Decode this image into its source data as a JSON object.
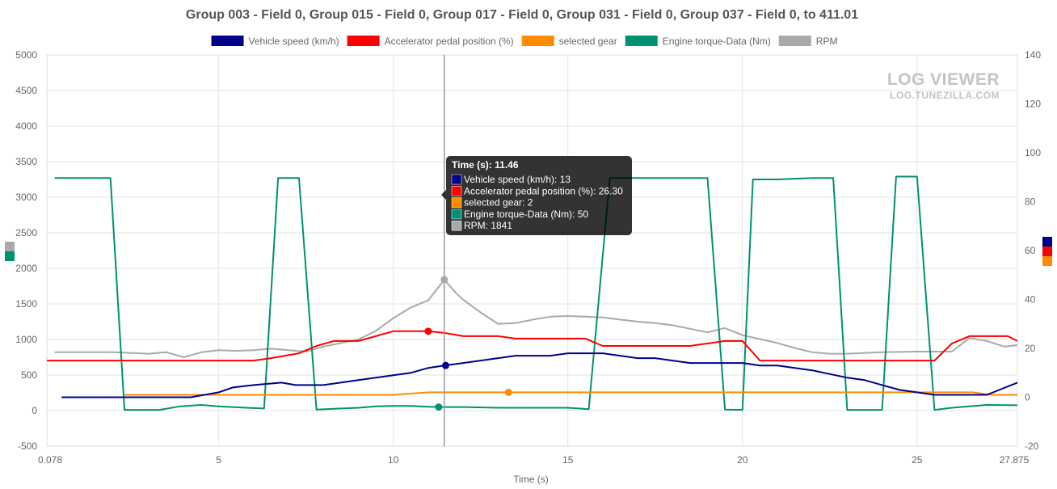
{
  "chart_data": {
    "type": "line",
    "title": "Group 003 - Field 0, Group 015 - Field 0, Group 017 - Field 0, Group 031 - Field 0, Group 037 - Field 0, to 411.01",
    "xlabel": "Time (s)",
    "xlim": [
      0.078,
      27.875
    ],
    "x_ticks": [
      5,
      10,
      15,
      20,
      25
    ],
    "x_start_label": "0.078",
    "x_end_label": "27.875",
    "y_left": {
      "ylim": [
        -500,
        5000
      ],
      "ticks": [
        -500,
        0,
        500,
        1000,
        1500,
        2000,
        2500,
        3000,
        3500,
        4000,
        4500,
        5000
      ]
    },
    "y_right": {
      "ylim": [
        -20,
        140
      ],
      "ticks": [
        -20,
        0,
        20,
        40,
        60,
        80,
        100,
        120,
        140
      ]
    },
    "grid": true,
    "legend_position": "top",
    "watermark": {
      "title": "LOG VIEWER",
      "subtitle": "LOG.TUNEZILLA.COM"
    },
    "series": [
      {
        "name": "Vehicle speed (km/h)",
        "color": "#00008b",
        "axis": "right",
        "x": [
          0.5,
          4.2,
          5.0,
          5.4,
          6.0,
          6.8,
          7.2,
          8.0,
          9.0,
          10.0,
          10.5,
          11.0,
          11.46,
          12.0,
          13.0,
          13.5,
          14.5,
          15.0,
          16.0,
          17.0,
          17.5,
          18.5,
          19.0,
          20.0,
          20.5,
          21.0,
          21.5,
          22.0,
          23.0,
          23.5,
          24.0,
          24.5,
          25.0,
          25.5,
          26.0,
          26.5,
          27.0,
          27.875
        ],
        "y": [
          0,
          0,
          2,
          4,
          5,
          6,
          5,
          5,
          7,
          9,
          10,
          12,
          13,
          14,
          16,
          17,
          17,
          18,
          18,
          16,
          16,
          14,
          14,
          14,
          13,
          13,
          12,
          11,
          8,
          7,
          5,
          3,
          2,
          1,
          1,
          1,
          1,
          6
        ]
      },
      {
        "name": "Accelerator pedal position (%)",
        "color": "#ff0000",
        "axis": "right",
        "x": [
          0.078,
          6.0,
          6.5,
          7.3,
          7.8,
          8.3,
          9.0,
          9.5,
          10.0,
          10.5,
          11.0,
          11.46,
          12.0,
          13.0,
          13.5,
          14.0,
          15.0,
          15.5,
          16.0,
          16.5,
          17.5,
          18.5,
          19.5,
          19.8,
          20.0,
          20.5,
          21.0,
          22.0,
          23.0,
          24.0,
          25.0,
          25.5,
          26.0,
          26.5,
          27.0,
          27.6,
          27.875
        ],
        "y": [
          15,
          15,
          16,
          18,
          21,
          23,
          23,
          25,
          27,
          27,
          27,
          26.3,
          25,
          25,
          24,
          24,
          24,
          24,
          21,
          21,
          21,
          21,
          23,
          23,
          23,
          15,
          15,
          15,
          15,
          15,
          15,
          15,
          22,
          25,
          25,
          25,
          23
        ]
      },
      {
        "name": "selected gear",
        "color": "#ff8c00",
        "axis": "right",
        "x": [
          2.3,
          5.0,
          10.0,
          11.0,
          11.46,
          13.3,
          20.0,
          25.0,
          26.6,
          27.1,
          27.875
        ],
        "y": [
          1,
          1,
          1,
          2,
          2,
          2,
          2,
          2,
          2,
          1,
          1
        ],
        "marker_x": 13.3,
        "marker_y": 2
      },
      {
        "name": "Engine torque-Data (Nm)",
        "color": "#009173",
        "axis": "left",
        "x": [
          0.3,
          1.9,
          2.3,
          3.3,
          3.9,
          4.5,
          5.0,
          5.8,
          6.3,
          6.7,
          7.3,
          7.8,
          8.5,
          9.0,
          9.5,
          10.0,
          10.5,
          11.0,
          11.46,
          12.0,
          13.0,
          14.0,
          15.0,
          15.6,
          16.2,
          17.0,
          18.0,
          19.0,
          19.5,
          20.0,
          20.3,
          21.0,
          21.5,
          22.0,
          22.6,
          23.0,
          23.5,
          24.0,
          24.4,
          25.0,
          25.5,
          26.0,
          26.5,
          27.0,
          27.875
        ],
        "y": [
          3270,
          3270,
          10,
          10,
          60,
          80,
          60,
          40,
          30,
          3270,
          3270,
          15,
          30,
          40,
          60,
          65,
          65,
          55,
          50,
          50,
          40,
          40,
          40,
          20,
          3270,
          3270,
          3270,
          3270,
          15,
          10,
          3250,
          3250,
          3260,
          3270,
          3270,
          10,
          10,
          10,
          3290,
          3290,
          10,
          40,
          60,
          80,
          75
        ]
      },
      {
        "name": "RPM",
        "color": "#a9a9a9",
        "axis": "left",
        "x": [
          0.3,
          1.0,
          2.0,
          3.0,
          3.5,
          4.0,
          4.5,
          5.0,
          5.5,
          6.0,
          6.5,
          7.0,
          7.5,
          8.0,
          8.5,
          9.0,
          9.5,
          10.0,
          10.5,
          11.0,
          11.46,
          11.8,
          12.0,
          12.5,
          13.0,
          13.5,
          14.0,
          14.5,
          15.0,
          15.5,
          16.0,
          16.5,
          17.0,
          17.5,
          18.0,
          18.5,
          19.0,
          19.5,
          20.0,
          21.0,
          21.5,
          22.0,
          22.5,
          23.0,
          24.0,
          25.0,
          25.5,
          26.0,
          26.5,
          27.0,
          27.5,
          27.875
        ],
        "y": [
          820,
          820,
          820,
          800,
          820,
          750,
          820,
          850,
          840,
          850,
          870,
          850,
          830,
          900,
          950,
          1000,
          1120,
          1300,
          1450,
          1550,
          1841,
          1650,
          1560,
          1380,
          1220,
          1230,
          1280,
          1320,
          1330,
          1320,
          1310,
          1280,
          1250,
          1230,
          1200,
          1150,
          1100,
          1160,
          1060,
          950,
          880,
          820,
          800,
          800,
          820,
          830,
          830,
          830,
          1020,
          980,
          900,
          920
        ]
      }
    ],
    "tooltip": {
      "title": "Time (s): 11.46",
      "lines": [
        "Vehicle speed (km/h): 13",
        "Accelerator pedal position (%): 26.30",
        "selected gear: 2",
        "Engine torque-Data (Nm): 50",
        "RPM: 1841"
      ],
      "colors": [
        "#00008b",
        "#ff0000",
        "#ff8c00",
        "#009173",
        "#a9a9a9"
      ]
    },
    "cursor_x": 11.46,
    "markers": [
      {
        "series": "RPM",
        "x": 11.46,
        "y": 1841
      },
      {
        "series": "Accelerator pedal position (%)",
        "x": 11.0,
        "y": 27
      },
      {
        "series": "Vehicle speed (km/h)",
        "x": 11.5,
        "y": 13
      },
      {
        "series": "Engine torque-Data (Nm)",
        "x": 11.3,
        "y": 50
      }
    ],
    "side_tags_left": [
      "#a9a9a9",
      "#009173"
    ],
    "side_tags_right": [
      "#00008b",
      "#ff0000",
      "#ff8c00"
    ]
  }
}
